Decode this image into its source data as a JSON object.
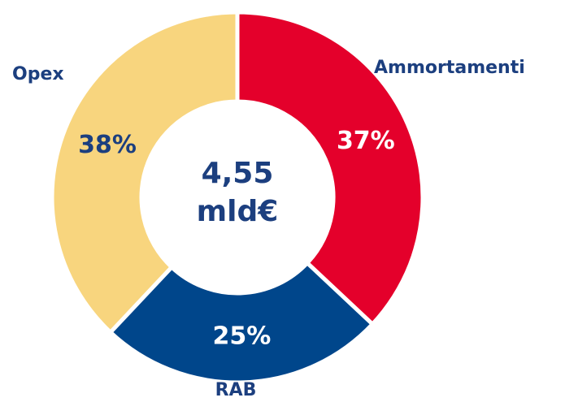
{
  "chart_data": {
    "type": "donut",
    "categories": [
      "Ammortamenti",
      "RAB",
      "Opex"
    ],
    "values": [
      37,
      25,
      38
    ],
    "value_labels": [
      "37%",
      "25%",
      "38%"
    ],
    "colors": [
      "#e4002b",
      "#00468b",
      "#f8d57e"
    ],
    "center_text": [
      "4,55",
      "mld€"
    ]
  }
}
